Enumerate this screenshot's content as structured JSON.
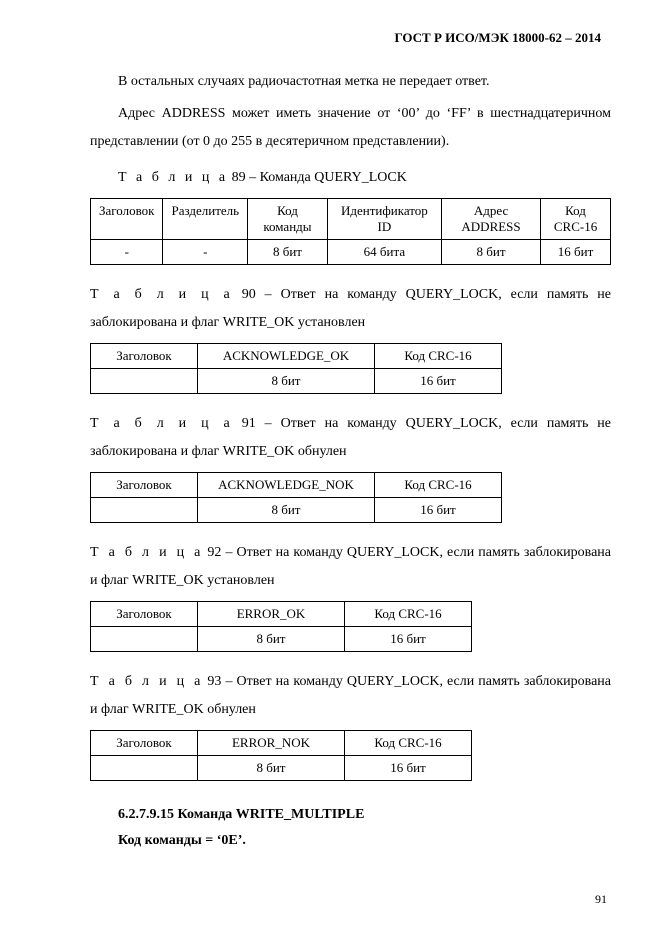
{
  "header": "ГОСТ Р ИСО/МЭК 18000-62 – 2014",
  "p1": "В остальных случаях радиочастотная метка не передает ответ.",
  "p2": "Адрес ADDRESS может иметь значение от ‘00’ до ‘FF’ в шестнадцатеричном представлении (от 0 до 255 в десятеричном представлении).",
  "t89": {
    "capword": "Т а б л и ц а",
    "caption": " 89 – Команда QUERY_LOCK",
    "h": [
      "Заголовок",
      "Разделитель",
      "Код команды",
      "Идентификатор ID",
      "Адрес ADDRESS",
      "Код CRC-16"
    ],
    "r": [
      "-",
      "-",
      "8 бит",
      "64 бита",
      "8 бит",
      "16 бит"
    ]
  },
  "t90": {
    "capword": "Т а б л и ц а",
    "caption": " 90 – Ответ на команду QUERY_LOCK, если память не заблокирована и флаг WRITE_OK установлен",
    "h": [
      "Заголовок",
      "ACKNOWLEDGE_OK",
      "Код CRC-16"
    ],
    "r": [
      "",
      "8 бит",
      "16 бит"
    ]
  },
  "t91": {
    "capword": "Т а б л и ц а",
    "caption": " 91 – Ответ на команду QUERY_LOCK, если память не заблокирована и флаг WRITE_OK обнулен",
    "h": [
      "Заголовок",
      "ACKNOWLEDGE_NOK",
      "Код CRC-16"
    ],
    "r": [
      "",
      "8 бит",
      "16 бит"
    ]
  },
  "t92": {
    "capword": "Т а б л и ц а",
    "caption": " 92 – Ответ на команду QUERY_LOCK, если память заблокирована и флаг WRITE_OK установлен",
    "h": [
      "Заголовок",
      "ERROR_OK",
      "Код CRC-16"
    ],
    "r": [
      "",
      "8 бит",
      "16 бит"
    ]
  },
  "t93": {
    "capword": "Т а б л и ц а",
    "caption": " 93 – Ответ на команду QUERY_LOCK, если память заблокирована и флаг WRITE_OK обнулен",
    "h": [
      "Заголовок",
      "ERROR_NOK",
      "Код CRC-16"
    ],
    "r": [
      "",
      "8 бит",
      "16 бит"
    ]
  },
  "section": "6.2.7.9.15 Команда WRITE_MULTIPLE",
  "cmdcode": "Код команды = ‘0Е’.",
  "pagenum": "91",
  "col3w": {
    "c0": "90px",
    "c1": "160px",
    "c2": "110px"
  }
}
